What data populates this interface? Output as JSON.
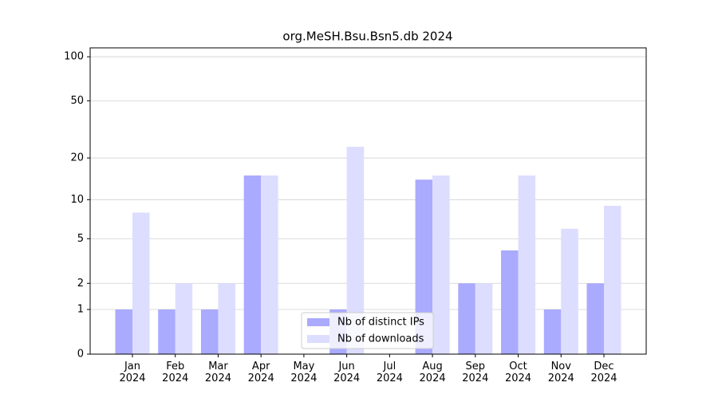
{
  "chart_data": {
    "type": "bar",
    "title": "org.MeSH.Bsu.Bsn5.db 2024",
    "categories": [
      "Jan 2024",
      "Feb 2024",
      "Mar 2024",
      "Apr 2024",
      "May 2024",
      "Jun 2024",
      "Jul 2024",
      "Aug 2024",
      "Sep 2024",
      "Oct 2024",
      "Nov 2024",
      "Dec 2024"
    ],
    "series": [
      {
        "name": "Nb of distinct IPs",
        "color": "#aaaaff",
        "values": [
          1,
          1,
          1,
          15,
          0,
          1,
          0,
          14,
          2,
          4,
          1,
          2
        ]
      },
      {
        "name": "Nb of downloads",
        "color": "#ddddff",
        "values": [
          8,
          2,
          2,
          15,
          0,
          24,
          0,
          15,
          2,
          15,
          6,
          9
        ]
      }
    ],
    "yscale": "log1p",
    "ylim": [
      0,
      115
    ],
    "yticks": [
      0,
      1,
      2,
      5,
      10,
      20,
      50,
      100
    ],
    "grid": true,
    "legend": "lower center"
  }
}
